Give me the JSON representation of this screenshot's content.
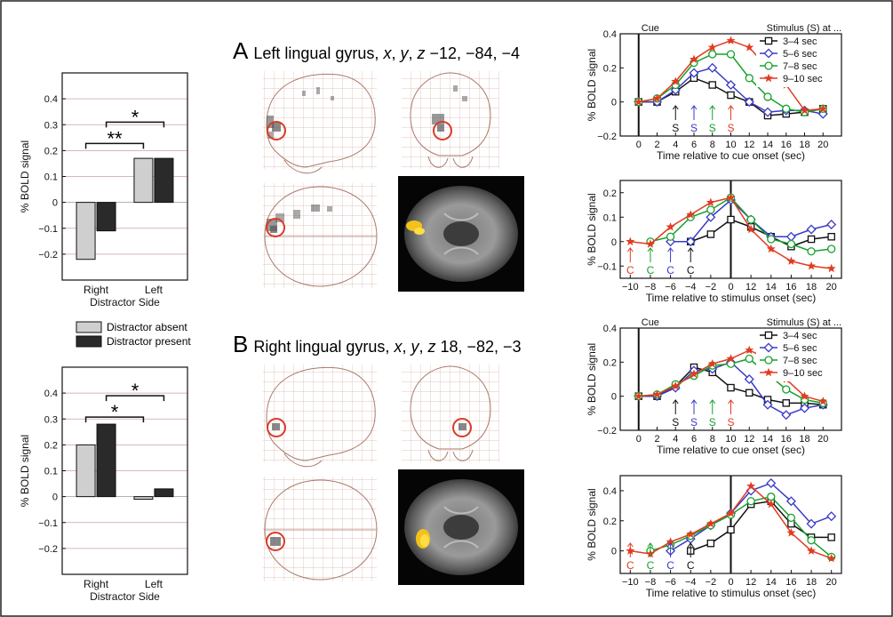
{
  "figure": {
    "panel_a": {
      "letter": "A",
      "title": "Left lingual gyrus, ",
      "x": "x",
      "y": "y",
      "z": "z",
      "coords": " −12, −84, −4"
    },
    "panel_b": {
      "letter": "B",
      "title": "Right lingual gyrus, ",
      "x": "x",
      "y": "y",
      "z": "z",
      "coords": " 18, −82, −3"
    },
    "separator": ", ",
    "legend": {
      "absent": "Distractor absent",
      "present": "Distractor present"
    },
    "bar_chart_labels": {
      "ylabel": "% BOLD signal",
      "xlabel": "Distractor Side",
      "categories": [
        "Right",
        "Left"
      ]
    }
  },
  "chart_data": [
    {
      "type": "bar",
      "id": "bar-top",
      "categories": [
        "Right",
        "Left"
      ],
      "series": [
        {
          "name": "Distractor absent",
          "values": [
            -0.22,
            0.17
          ],
          "color": "#cfcfcf"
        },
        {
          "name": "Distractor present",
          "values": [
            -0.11,
            0.17
          ],
          "color": "#2a2a2a"
        }
      ],
      "ylabel": "% BOLD signal",
      "xlabel": "Distractor Side",
      "ylim": [
        -0.3,
        0.5
      ],
      "yticks": [
        -0.2,
        -0.1,
        0,
        0.1,
        0.2,
        0.3,
        0.4
      ],
      "significance": [
        {
          "label": "**",
          "pair": "right-absent to left-absent"
        },
        {
          "label": "*",
          "pair": "right-present to left-present"
        }
      ],
      "grid": true
    },
    {
      "type": "bar",
      "id": "bar-bottom",
      "categories": [
        "Right",
        "Left"
      ],
      "series": [
        {
          "name": "Distractor absent",
          "values": [
            0.2,
            -0.01
          ],
          "color": "#cfcfcf"
        },
        {
          "name": "Distractor present",
          "values": [
            0.28,
            0.03
          ],
          "color": "#2a2a2a"
        }
      ],
      "ylabel": "% BOLD signal",
      "xlabel": "Distractor Side",
      "ylim": [
        -0.3,
        0.5
      ],
      "yticks": [
        -0.2,
        -0.1,
        0,
        0.1,
        0.2,
        0.3,
        0.4
      ],
      "significance": [
        {
          "label": "*",
          "pair": "right-absent to left-absent"
        },
        {
          "label": "*",
          "pair": "right-present to left-present"
        }
      ],
      "grid": true
    },
    {
      "type": "line",
      "id": "line-a-cue",
      "x": [
        0,
        2,
        4,
        6,
        8,
        10,
        12,
        14,
        16,
        18,
        20
      ],
      "xlim": [
        -2,
        22
      ],
      "ylim": [
        -0.2,
        0.4
      ],
      "xticks": [
        0,
        2,
        4,
        6,
        8,
        10,
        12,
        14,
        16,
        18,
        20
      ],
      "yticks": [
        -0.2,
        0,
        0.2,
        0.4
      ],
      "xlabel": "Time relative to cue onset (sec)",
      "ylabel": "% BOLD signal",
      "vline": 0,
      "top_left_label": "Cue",
      "top_right_label": "Stimulus (S) at ...",
      "legend_position": "top-right",
      "series": [
        {
          "name": "3–4 sec",
          "color": "#111111",
          "marker": "square",
          "values": [
            0,
            0,
            0.06,
            0.14,
            0.1,
            0.04,
            0,
            -0.08,
            -0.07,
            -0.06,
            -0.04
          ]
        },
        {
          "name": "5–6 sec",
          "color": "#3a3ac8",
          "marker": "diamond",
          "values": [
            0,
            0,
            0.07,
            0.17,
            0.2,
            0.1,
            0,
            -0.06,
            -0.05,
            -0.05,
            -0.07
          ]
        },
        {
          "name": "7–8 sec",
          "color": "#16a12b",
          "marker": "circle",
          "values": [
            0,
            0.02,
            0.1,
            0.23,
            0.28,
            0.28,
            0.14,
            0.03,
            -0.04,
            -0.06,
            -0.04
          ]
        },
        {
          "name": "9–10 sec",
          "color": "#e23b21",
          "marker": "star",
          "values": [
            0,
            0.02,
            0.12,
            0.25,
            0.32,
            0.36,
            0.32,
            0.2,
            0.1,
            -0.05,
            -0.04
          ]
        }
      ],
      "arrows": [
        {
          "x": 4,
          "label": "S",
          "color": "#111111"
        },
        {
          "x": 6,
          "label": "S",
          "color": "#3a3ac8"
        },
        {
          "x": 8,
          "label": "S",
          "color": "#16a12b"
        },
        {
          "x": 10,
          "label": "S",
          "color": "#e23b21"
        }
      ]
    },
    {
      "type": "line",
      "id": "line-a-stim",
      "xlim": [
        -11,
        22
      ],
      "ylim": [
        -0.15,
        0.25
      ],
      "xticks": [
        -10,
        -8,
        -6,
        -4,
        -2,
        0,
        12,
        14,
        16,
        18,
        20
      ],
      "yticks": [
        -0.1,
        0,
        0.1,
        0.2
      ],
      "xlabel": "Time relative to stimulus onset (sec)",
      "ylabel": "% BOLD signal",
      "vline": 0,
      "series": [
        {
          "name": "3–4 sec",
          "color": "#111111",
          "marker": "square",
          "x": [
            -4,
            -2,
            0,
            12,
            14,
            16,
            18,
            20
          ],
          "values": [
            0,
            0.03,
            0.09,
            0.06,
            0.02,
            -0.02,
            0.01,
            0.02
          ]
        },
        {
          "name": "5–6 sec",
          "color": "#3a3ac8",
          "marker": "diamond",
          "x": [
            -6,
            -4,
            -2,
            0,
            12,
            14,
            16,
            18,
            20
          ],
          "values": [
            0,
            0,
            0.1,
            0.17,
            0.09,
            0.02,
            0.02,
            0.05,
            0.07
          ]
        },
        {
          "name": "7–8 sec",
          "color": "#16a12b",
          "marker": "circle",
          "x": [
            -8,
            -6,
            -4,
            -2,
            0,
            12,
            14,
            16,
            18,
            20
          ],
          "values": [
            0,
            0.02,
            0.1,
            0.13,
            0.18,
            0.09,
            0.01,
            -0.01,
            -0.04,
            -0.03
          ]
        },
        {
          "name": "9–10 sec",
          "color": "#e23b21",
          "marker": "star",
          "x": [
            -10,
            -8,
            -6,
            -4,
            -2,
            0,
            12,
            14,
            16,
            18,
            20
          ],
          "values": [
            0,
            -0.01,
            0.06,
            0.11,
            0.16,
            0.18,
            0.05,
            -0.03,
            -0.08,
            -0.1,
            -0.11
          ]
        }
      ],
      "arrows": [
        {
          "x": -10,
          "label": "C",
          "color": "#e23b21"
        },
        {
          "x": -8,
          "label": "C",
          "color": "#16a12b"
        },
        {
          "x": -6,
          "label": "C",
          "color": "#3a3ac8"
        },
        {
          "x": -4,
          "label": "C",
          "color": "#111111"
        }
      ]
    },
    {
      "type": "line",
      "id": "line-b-cue",
      "x": [
        0,
        2,
        4,
        6,
        8,
        10,
        12,
        14,
        16,
        18,
        20
      ],
      "xlim": [
        -2,
        22
      ],
      "ylim": [
        -0.2,
        0.4
      ],
      "xticks": [
        0,
        2,
        4,
        6,
        8,
        10,
        12,
        14,
        16,
        18,
        20
      ],
      "yticks": [
        -0.2,
        0,
        0.2,
        0.4
      ],
      "xlabel": "Time relative to cue onset (sec)",
      "ylabel": "% BOLD signal",
      "vline": 0,
      "top_left_label": "Cue",
      "top_right_label": "Stimulus (S) at ...",
      "legend_position": "top-right",
      "series": [
        {
          "name": "3–4 sec",
          "color": "#111111",
          "marker": "square",
          "values": [
            0,
            0,
            0.06,
            0.17,
            0.14,
            0.05,
            0.02,
            -0.02,
            -0.04,
            -0.04,
            -0.05
          ]
        },
        {
          "name": "5–6 sec",
          "color": "#3a3ac8",
          "marker": "diamond",
          "values": [
            0,
            0,
            0.05,
            0.15,
            0.16,
            0.2,
            0.1,
            -0.05,
            -0.11,
            -0.07,
            -0.05
          ]
        },
        {
          "name": "7–8 sec",
          "color": "#16a12b",
          "marker": "circle",
          "values": [
            0,
            0.01,
            0.07,
            0.12,
            0.18,
            0.19,
            0.22,
            0.13,
            0.04,
            -0.02,
            -0.04
          ]
        },
        {
          "name": "9–10 sec",
          "color": "#e23b21",
          "marker": "star",
          "values": [
            0,
            0.01,
            0.06,
            0.13,
            0.19,
            0.22,
            0.27,
            0.22,
            0.1,
            0,
            -0.03
          ]
        }
      ],
      "arrows": [
        {
          "x": 4,
          "label": "S",
          "color": "#111111"
        },
        {
          "x": 6,
          "label": "S",
          "color": "#3a3ac8"
        },
        {
          "x": 8,
          "label": "S",
          "color": "#16a12b"
        },
        {
          "x": 10,
          "label": "S",
          "color": "#e23b21"
        }
      ]
    },
    {
      "type": "line",
      "id": "line-b-stim",
      "xlim": [
        -11,
        22
      ],
      "ylim": [
        -0.15,
        0.5
      ],
      "xticks": [
        -10,
        -8,
        -6,
        -4,
        -2,
        0,
        12,
        14,
        16,
        18,
        20
      ],
      "yticks": [
        0,
        0.2,
        0.4
      ],
      "xlabel": "Time relative to stimulus onset (sec)",
      "ylabel": "% BOLD signal",
      "vline": 0,
      "series": [
        {
          "name": "3–4 sec",
          "color": "#111111",
          "marker": "square",
          "x": [
            -4,
            -2,
            0,
            12,
            14,
            16,
            18,
            20
          ],
          "values": [
            0,
            0.05,
            0.14,
            0.31,
            0.33,
            0.18,
            0.09,
            0.09
          ]
        },
        {
          "name": "5–6 sec",
          "color": "#3a3ac8",
          "marker": "diamond",
          "x": [
            -6,
            -4,
            -2,
            0,
            12,
            14,
            16,
            18,
            20
          ],
          "values": [
            0,
            0.08,
            0.17,
            0.25,
            0.4,
            0.45,
            0.33,
            0.18,
            0.23
          ]
        },
        {
          "name": "7–8 sec",
          "color": "#16a12b",
          "marker": "circle",
          "x": [
            -8,
            -6,
            -4,
            -2,
            0,
            12,
            14,
            16,
            18,
            20
          ],
          "values": [
            0,
            0.04,
            0.1,
            0.17,
            0.24,
            0.33,
            0.36,
            0.22,
            0.07,
            -0.04
          ]
        },
        {
          "name": "9–10 sec",
          "color": "#e23b21",
          "marker": "star",
          "x": [
            -10,
            -8,
            -6,
            -4,
            -2,
            0,
            12,
            14,
            16,
            18,
            20
          ],
          "values": [
            0,
            -0.02,
            0.06,
            0.11,
            0.18,
            0.25,
            0.43,
            0.31,
            0.12,
            0,
            -0.05
          ]
        }
      ],
      "arrows": [
        {
          "x": -10,
          "label": "C",
          "color": "#e23b21"
        },
        {
          "x": -8,
          "label": "C",
          "color": "#16a12b"
        },
        {
          "x": -6,
          "label": "C",
          "color": "#3a3ac8"
        },
        {
          "x": -4,
          "label": "C",
          "color": "#111111"
        }
      ]
    }
  ]
}
